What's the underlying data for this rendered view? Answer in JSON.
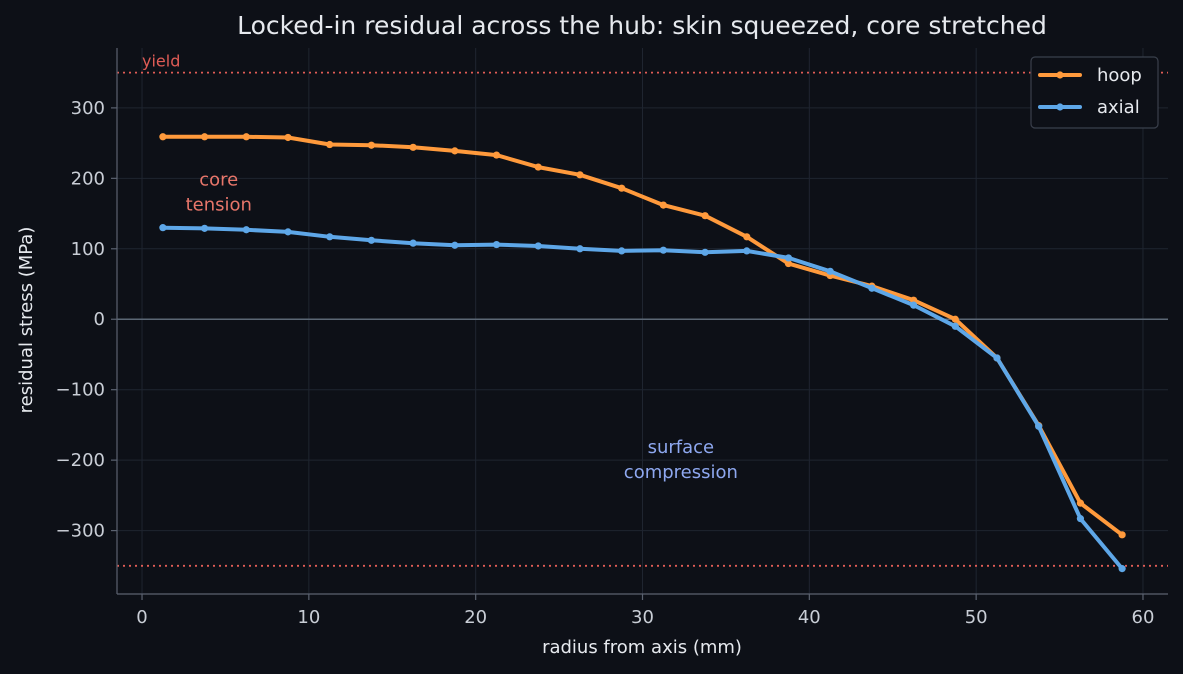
{
  "chart_data": {
    "type": "line",
    "title": "Locked-in residual across the hub: skin squeezed, core stretched",
    "xlabel": "radius from axis (mm)",
    "ylabel": "residual stress (MPa)",
    "xlim": [
      -1.5,
      61.5
    ],
    "ylim": [
      -390,
      385
    ],
    "xticks": [
      0,
      10,
      20,
      30,
      40,
      50,
      60
    ],
    "yticks": [
      300,
      200,
      100,
      0,
      -100,
      -200,
      -300
    ],
    "ytick_labels": [
      "300",
      "200",
      "100",
      "0",
      "−100",
      "−200",
      "−300"
    ],
    "grid": true,
    "legend_position": "top-right",
    "reference_lines": [
      {
        "y": 350,
        "label": "yield",
        "color": "#e05c56"
      },
      {
        "y": -350,
        "label": "",
        "color": "#e05c56"
      }
    ],
    "annotations": [
      {
        "lines": [
          "core",
          "tension"
        ],
        "x": 4.6,
        "y": 190,
        "color": "#e8766a"
      },
      {
        "lines": [
          "surface",
          "compression"
        ],
        "x": 32.3,
        "y": -190,
        "color": "#8ea8f0"
      }
    ],
    "x": [
      1.25,
      3.75,
      6.25,
      8.75,
      11.25,
      13.75,
      16.25,
      18.75,
      21.25,
      23.75,
      26.25,
      28.75,
      31.25,
      33.75,
      36.25,
      38.75,
      41.25,
      43.75,
      46.25,
      48.75,
      51.25,
      53.75,
      56.25,
      58.75
    ],
    "series": [
      {
        "name": "hoop",
        "color": "#ff9a3c",
        "values": [
          259,
          259,
          259,
          258,
          248,
          247,
          244,
          239,
          233,
          216,
          205,
          186,
          162,
          147,
          117,
          79,
          62,
          47,
          27,
          0,
          -55,
          -151,
          -261,
          -306
        ]
      },
      {
        "name": "axial",
        "color": "#5ea7e8",
        "values": [
          130,
          129,
          127,
          124,
          117,
          112,
          108,
          105,
          106,
          104,
          100,
          97,
          98,
          95,
          97,
          87,
          68,
          44,
          20,
          -10,
          -55,
          -152,
          -283,
          -354
        ]
      }
    ]
  }
}
